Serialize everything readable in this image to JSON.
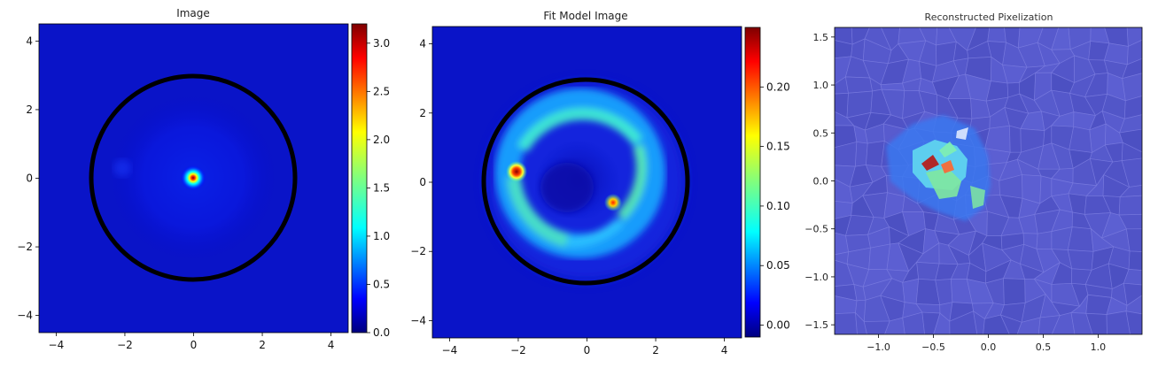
{
  "chart_data": [
    {
      "type": "heatmap",
      "title": "Image",
      "xlabel": "",
      "ylabel": "",
      "xlim": [
        -4.5,
        4.5
      ],
      "ylim": [
        -4.5,
        4.5
      ],
      "x_ticks": [
        -4,
        -2,
        0,
        2,
        4
      ],
      "y_ticks": [
        -4,
        -2,
        0,
        2,
        4
      ],
      "x_tick_labels": [
        "−4",
        "−2",
        "0",
        "2",
        "4"
      ],
      "y_tick_labels": [
        "−4",
        "−2",
        "0",
        "2",
        "4"
      ],
      "colormap": "jet",
      "colorbar": {
        "min": 0.0,
        "max": 3.2,
        "ticks": [
          0.0,
          0.5,
          1.0,
          1.5,
          2.0,
          2.5,
          3.0
        ],
        "tick_labels": [
          "0.0",
          "0.5",
          "1.0",
          "1.5",
          "2.0",
          "2.5",
          "3.0"
        ]
      },
      "mask_circle": {
        "center": [
          0,
          0
        ],
        "radius": 3.0,
        "color": "#000000"
      },
      "features": [
        {
          "kind": "peak",
          "x": 0.0,
          "y": 0.0,
          "value": 3.2
        }
      ],
      "grid": false
    },
    {
      "type": "heatmap",
      "title": "Fit Model Image",
      "xlabel": "",
      "ylabel": "",
      "xlim": [
        -4.5,
        4.5
      ],
      "ylim": [
        -4.5,
        4.5
      ],
      "x_ticks": [
        -4,
        -2,
        0,
        2,
        4
      ],
      "y_ticks": [
        -4,
        -2,
        0,
        2,
        4
      ],
      "x_tick_labels": [
        "−4",
        "−2",
        "0",
        "2",
        "4"
      ],
      "y_tick_labels": [
        "−4",
        "−2",
        "0",
        "2",
        "4"
      ],
      "colormap": "jet",
      "colorbar": {
        "min": -0.01,
        "max": 0.25,
        "ticks": [
          0.0,
          0.05,
          0.1,
          0.15,
          0.2
        ],
        "tick_labels": [
          "0.00",
          "0.05",
          "0.10",
          "0.15",
          "0.20"
        ]
      },
      "mask_circle": {
        "center": [
          0,
          0
        ],
        "radius": 3.0,
        "color": "#000000"
      },
      "features": [
        {
          "kind": "ring",
          "center": [
            0.0,
            0.3
          ],
          "radius": 2.1
        },
        {
          "kind": "peak",
          "x": -2.0,
          "y": 0.3,
          "value": 0.24
        },
        {
          "kind": "peak",
          "x": 0.8,
          "y": -0.6,
          "value": 0.2
        }
      ],
      "grid": false
    },
    {
      "type": "heatmap",
      "title": "Reconstructed Pixelization",
      "xlabel": "",
      "ylabel": "",
      "xlim": [
        -1.4,
        1.4
      ],
      "ylim": [
        -1.6,
        1.6
      ],
      "x_ticks": [
        -1.0,
        -0.5,
        0.0,
        0.5,
        1.0
      ],
      "y_ticks": [
        -1.5,
        -1.0,
        -0.5,
        0.0,
        0.5,
        1.0,
        1.5
      ],
      "x_tick_labels": [
        "−1.0",
        "−0.5",
        "0.0",
        "0.5",
        "1.0"
      ],
      "y_tick_labels": [
        "−1.5",
        "−1.0",
        "−0.5",
        "0.0",
        "0.5",
        "1.0",
        "1.5"
      ],
      "colormap": "jet",
      "features": [
        {
          "kind": "source",
          "x": -0.4,
          "y": 0.15
        },
        {
          "kind": "peak",
          "x": -0.55,
          "y": 0.2
        },
        {
          "kind": "peak",
          "x": -0.38,
          "y": 0.18
        }
      ],
      "grid": false
    }
  ]
}
